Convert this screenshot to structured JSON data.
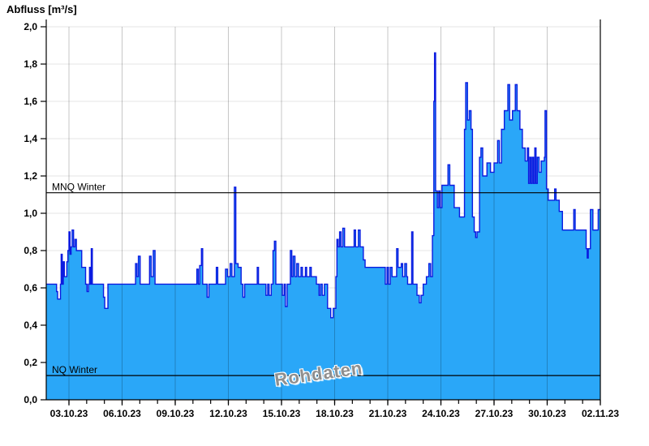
{
  "header": {
    "title": "Abfluss [m³/s]"
  },
  "watermark": {
    "text": "Rohdaten"
  },
  "colors": {
    "fill": "#2aa7f8",
    "line": "#0b1be0",
    "grid_horizontal": "#e4e4e4",
    "grid_vertical": "rgba(0,0,0,0.22)",
    "axis": "#000000",
    "reference_line": "#000000",
    "watermark": "#8f8f8f"
  },
  "chart_data": {
    "type": "area",
    "title": "Abfluss [m³/s]",
    "ylabel": "Abfluss [m³/s]",
    "ylim": [
      0.0,
      2.0
    ],
    "ytick_step": 0.2,
    "ytick_labels": [
      "0,0",
      "0,2",
      "0,4",
      "0,6",
      "0,8",
      "1,0",
      "1,2",
      "1,4",
      "1,6",
      "1,8",
      "2,0"
    ],
    "x_domain_days": [
      1.72,
      33.0
    ],
    "x_minor_tick_days": [
      3,
      4,
      5,
      6,
      7,
      8,
      9,
      10,
      11,
      12,
      13,
      14,
      15,
      16,
      17,
      18,
      19,
      20,
      21,
      22,
      23,
      24,
      25,
      26,
      27,
      28,
      29,
      30,
      31,
      32,
      33
    ],
    "x_major_ticks": [
      {
        "day": 3,
        "label": "03.10.23"
      },
      {
        "day": 6,
        "label": "06.10.23"
      },
      {
        "day": 9,
        "label": "09.10.23"
      },
      {
        "day": 12,
        "label": "12.10.23"
      },
      {
        "day": 15,
        "label": "15.10.23"
      },
      {
        "day": 18,
        "label": "18.10.23"
      },
      {
        "day": 21,
        "label": "21.10.23"
      },
      {
        "day": 24,
        "label": "24.10.23"
      },
      {
        "day": 27,
        "label": "27.10.23"
      },
      {
        "day": 30,
        "label": "30.10.23"
      },
      {
        "day": 33,
        "label": "02.11.23"
      }
    ],
    "reference_lines": [
      {
        "label": "MNQ Winter",
        "value": 1.11
      },
      {
        "label": "NQ Winter",
        "value": 0.13
      }
    ],
    "legend_position": "none",
    "grid": true,
    "series": [
      {
        "name": "Abfluss Rohdaten",
        "step": "after",
        "points": [
          [
            1.72,
            0.62
          ],
          [
            2.3,
            0.58
          ],
          [
            2.36,
            0.54
          ],
          [
            2.52,
            0.62
          ],
          [
            2.56,
            0.78
          ],
          [
            2.62,
            0.62
          ],
          [
            2.68,
            0.74
          ],
          [
            2.74,
            0.66
          ],
          [
            2.88,
            0.74
          ],
          [
            2.94,
            0.8
          ],
          [
            3.0,
            0.9
          ],
          [
            3.06,
            0.78
          ],
          [
            3.12,
            0.82
          ],
          [
            3.18,
            0.91
          ],
          [
            3.26,
            0.82
          ],
          [
            3.34,
            0.86
          ],
          [
            3.42,
            0.8
          ],
          [
            3.72,
            0.71
          ],
          [
            3.94,
            0.62
          ],
          [
            4.02,
            0.58
          ],
          [
            4.1,
            0.62
          ],
          [
            4.16,
            0.71
          ],
          [
            4.22,
            0.62
          ],
          [
            4.26,
            0.81
          ],
          [
            4.32,
            0.62
          ],
          [
            4.95,
            0.55
          ],
          [
            5.02,
            0.49
          ],
          [
            5.2,
            0.62
          ],
          [
            6.76,
            0.73
          ],
          [
            6.84,
            0.66
          ],
          [
            6.92,
            0.77
          ],
          [
            7.02,
            0.62
          ],
          [
            7.55,
            0.77
          ],
          [
            7.64,
            0.66
          ],
          [
            7.76,
            0.8
          ],
          [
            7.86,
            0.62
          ],
          [
            10.22,
            0.7
          ],
          [
            10.3,
            0.62
          ],
          [
            10.38,
            0.72
          ],
          [
            10.48,
            0.81
          ],
          [
            10.55,
            0.62
          ],
          [
            10.8,
            0.55
          ],
          [
            10.9,
            0.62
          ],
          [
            11.32,
            0.71
          ],
          [
            11.4,
            0.62
          ],
          [
            11.84,
            0.7
          ],
          [
            11.95,
            0.66
          ],
          [
            12.1,
            0.73
          ],
          [
            12.2,
            0.66
          ],
          [
            12.34,
            1.14
          ],
          [
            12.42,
            0.73
          ],
          [
            12.55,
            0.71
          ],
          [
            12.72,
            0.62
          ],
          [
            12.82,
            0.55
          ],
          [
            12.92,
            0.62
          ],
          [
            13.63,
            0.71
          ],
          [
            13.7,
            0.62
          ],
          [
            14.12,
            0.56
          ],
          [
            14.22,
            0.62
          ],
          [
            14.3,
            0.56
          ],
          [
            14.42,
            0.62
          ],
          [
            14.52,
            0.8
          ],
          [
            14.6,
            0.85
          ],
          [
            14.68,
            0.62
          ],
          [
            15.05,
            0.56
          ],
          [
            15.15,
            0.62
          ],
          [
            15.22,
            0.5
          ],
          [
            15.32,
            0.62
          ],
          [
            15.5,
            0.8
          ],
          [
            15.58,
            0.66
          ],
          [
            15.66,
            0.77
          ],
          [
            15.76,
            0.66
          ],
          [
            15.86,
            0.73
          ],
          [
            15.96,
            0.66
          ],
          [
            16.1,
            0.71
          ],
          [
            16.18,
            0.66
          ],
          [
            16.35,
            0.71
          ],
          [
            16.42,
            0.66
          ],
          [
            16.6,
            0.71
          ],
          [
            16.68,
            0.66
          ],
          [
            16.97,
            0.62
          ],
          [
            17.12,
            0.56
          ],
          [
            17.2,
            0.62
          ],
          [
            17.3,
            0.56
          ],
          [
            17.42,
            0.62
          ],
          [
            17.6,
            0.49
          ],
          [
            17.78,
            0.44
          ],
          [
            17.92,
            0.49
          ],
          [
            18.07,
            0.66
          ],
          [
            18.13,
            0.86
          ],
          [
            18.2,
            0.82
          ],
          [
            18.28,
            0.9
          ],
          [
            18.36,
            0.82
          ],
          [
            18.46,
            0.92
          ],
          [
            18.56,
            0.82
          ],
          [
            19.1,
            0.91
          ],
          [
            19.18,
            0.82
          ],
          [
            19.34,
            0.91
          ],
          [
            19.44,
            0.82
          ],
          [
            19.62,
            0.75
          ],
          [
            19.72,
            0.71
          ],
          [
            20.86,
            0.62
          ],
          [
            20.96,
            0.71
          ],
          [
            21.04,
            0.62
          ],
          [
            21.14,
            0.71
          ],
          [
            21.24,
            0.66
          ],
          [
            21.5,
            0.81
          ],
          [
            21.58,
            0.71
          ],
          [
            21.76,
            0.73
          ],
          [
            21.84,
            0.66
          ],
          [
            21.96,
            0.73
          ],
          [
            22.06,
            0.66
          ],
          [
            22.12,
            0.62
          ],
          [
            22.35,
            0.9
          ],
          [
            22.42,
            0.62
          ],
          [
            22.65,
            0.56
          ],
          [
            22.78,
            0.52
          ],
          [
            22.88,
            0.56
          ],
          [
            23.0,
            0.62
          ],
          [
            23.18,
            0.66
          ],
          [
            23.32,
            0.73
          ],
          [
            23.42,
            0.66
          ],
          [
            23.52,
            0.88
          ],
          [
            23.6,
            1.6
          ],
          [
            23.64,
            1.86
          ],
          [
            23.7,
            1.12
          ],
          [
            23.8,
            1.03
          ],
          [
            23.88,
            1.12
          ],
          [
            23.96,
            1.03
          ],
          [
            24.06,
            1.15
          ],
          [
            24.4,
            1.26
          ],
          [
            24.5,
            1.15
          ],
          [
            24.75,
            1.03
          ],
          [
            25.05,
            0.98
          ],
          [
            25.33,
            1.45
          ],
          [
            25.4,
            1.7
          ],
          [
            25.5,
            1.5
          ],
          [
            25.6,
            1.55
          ],
          [
            25.7,
            1.45
          ],
          [
            25.78,
            0.98
          ],
          [
            25.88,
            0.9
          ],
          [
            25.96,
            0.87
          ],
          [
            26.04,
            0.9
          ],
          [
            26.18,
            1.3
          ],
          [
            26.26,
            1.35
          ],
          [
            26.36,
            1.2
          ],
          [
            26.6,
            1.27
          ],
          [
            26.8,
            1.22
          ],
          [
            27.0,
            1.27
          ],
          [
            27.2,
            1.39
          ],
          [
            27.3,
            1.27
          ],
          [
            27.42,
            1.45
          ],
          [
            27.58,
            1.55
          ],
          [
            27.78,
            1.69
          ],
          [
            27.88,
            1.5
          ],
          [
            28.04,
            1.55
          ],
          [
            28.2,
            1.69
          ],
          [
            28.3,
            1.55
          ],
          [
            28.46,
            1.45
          ],
          [
            28.6,
            1.35
          ],
          [
            28.76,
            1.28
          ],
          [
            28.88,
            1.35
          ],
          [
            28.95,
            1.16
          ],
          [
            29.02,
            1.3
          ],
          [
            29.09,
            1.16
          ],
          [
            29.16,
            1.3
          ],
          [
            29.23,
            1.16
          ],
          [
            29.3,
            1.35
          ],
          [
            29.37,
            1.16
          ],
          [
            29.44,
            1.3
          ],
          [
            29.54,
            1.22
          ],
          [
            29.66,
            1.28
          ],
          [
            29.84,
            1.3
          ],
          [
            29.88,
            1.55
          ],
          [
            29.96,
            1.13
          ],
          [
            30.06,
            1.07
          ],
          [
            30.42,
            1.13
          ],
          [
            30.5,
            1.07
          ],
          [
            30.68,
            1.01
          ],
          [
            30.86,
            0.91
          ],
          [
            31.5,
            1.02
          ],
          [
            31.58,
            0.91
          ],
          [
            32.2,
            0.81
          ],
          [
            32.26,
            0.76
          ],
          [
            32.32,
            0.81
          ],
          [
            32.44,
            1.02
          ],
          [
            32.58,
            0.91
          ],
          [
            32.88,
            1.02
          ],
          [
            33.0,
            1.02
          ]
        ]
      }
    ]
  }
}
